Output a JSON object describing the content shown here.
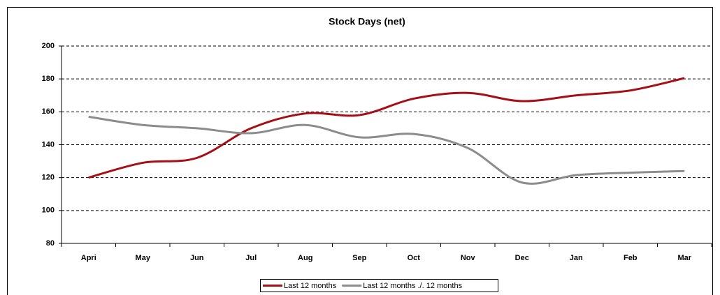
{
  "chart_data": {
    "type": "line",
    "title": "Stock Days (net)",
    "categories": [
      "Apri",
      "May",
      "Jun",
      "Jul",
      "Aug",
      "Sep",
      "Oct",
      "Nov",
      "Dec",
      "Jan",
      "Feb",
      "Mar"
    ],
    "series": [
      {
        "name": "Last 12 months",
        "color": "#a50f15",
        "values": [
          120,
          129,
          132,
          150,
          159,
          158,
          168,
          171.5,
          166.5,
          170,
          173,
          180.5
        ]
      },
      {
        "name": "Last 12 months ./. 12 months",
        "color": "#8c8c8c",
        "values": [
          157,
          152,
          150,
          147,
          152,
          144.5,
          146.5,
          138,
          117,
          121.5,
          123,
          124
        ]
      }
    ],
    "ylim": [
      80,
      200
    ],
    "yticks": [
      80,
      100,
      120,
      140,
      160,
      180,
      200
    ],
    "grid": true,
    "legend": "bottom"
  }
}
